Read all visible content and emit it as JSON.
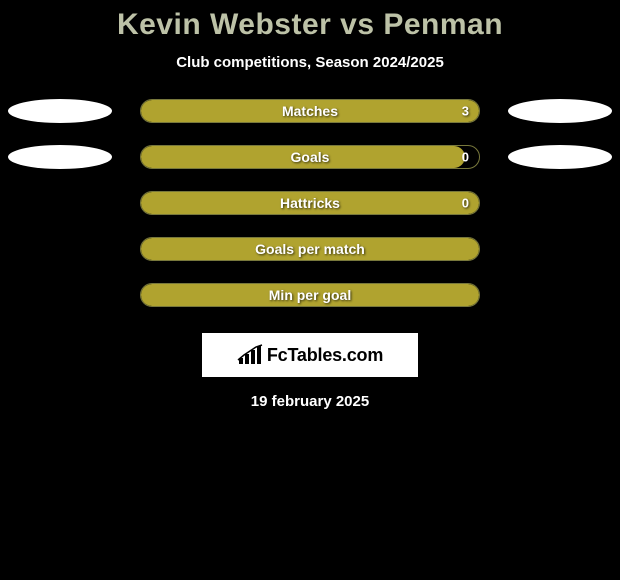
{
  "title": "Kevin Webster vs Penman",
  "subtitle": "Club competitions, Season 2024/2025",
  "date": "19 february 2025",
  "logo_text": "FcTables.com",
  "colors": {
    "background": "#000000",
    "title_color": "#bdc2a7",
    "bar_fill": "#b0a32f",
    "bar_border": "rgba(200,200,100,0.6)",
    "ellipse": "#ffffff",
    "logo_bg": "#ffffff",
    "text_white": "#ffffff"
  },
  "ellipse_rows": [
    0,
    1
  ],
  "bars": [
    {
      "label": "Matches",
      "value": "3",
      "fill_pct": 100
    },
    {
      "label": "Goals",
      "value": "0",
      "fill_pct": 96
    },
    {
      "label": "Hattricks",
      "value": "0",
      "fill_pct": 100
    },
    {
      "label": "Goals per match",
      "value": "",
      "fill_pct": 100
    },
    {
      "label": "Min per goal",
      "value": "",
      "fill_pct": 100
    }
  ]
}
